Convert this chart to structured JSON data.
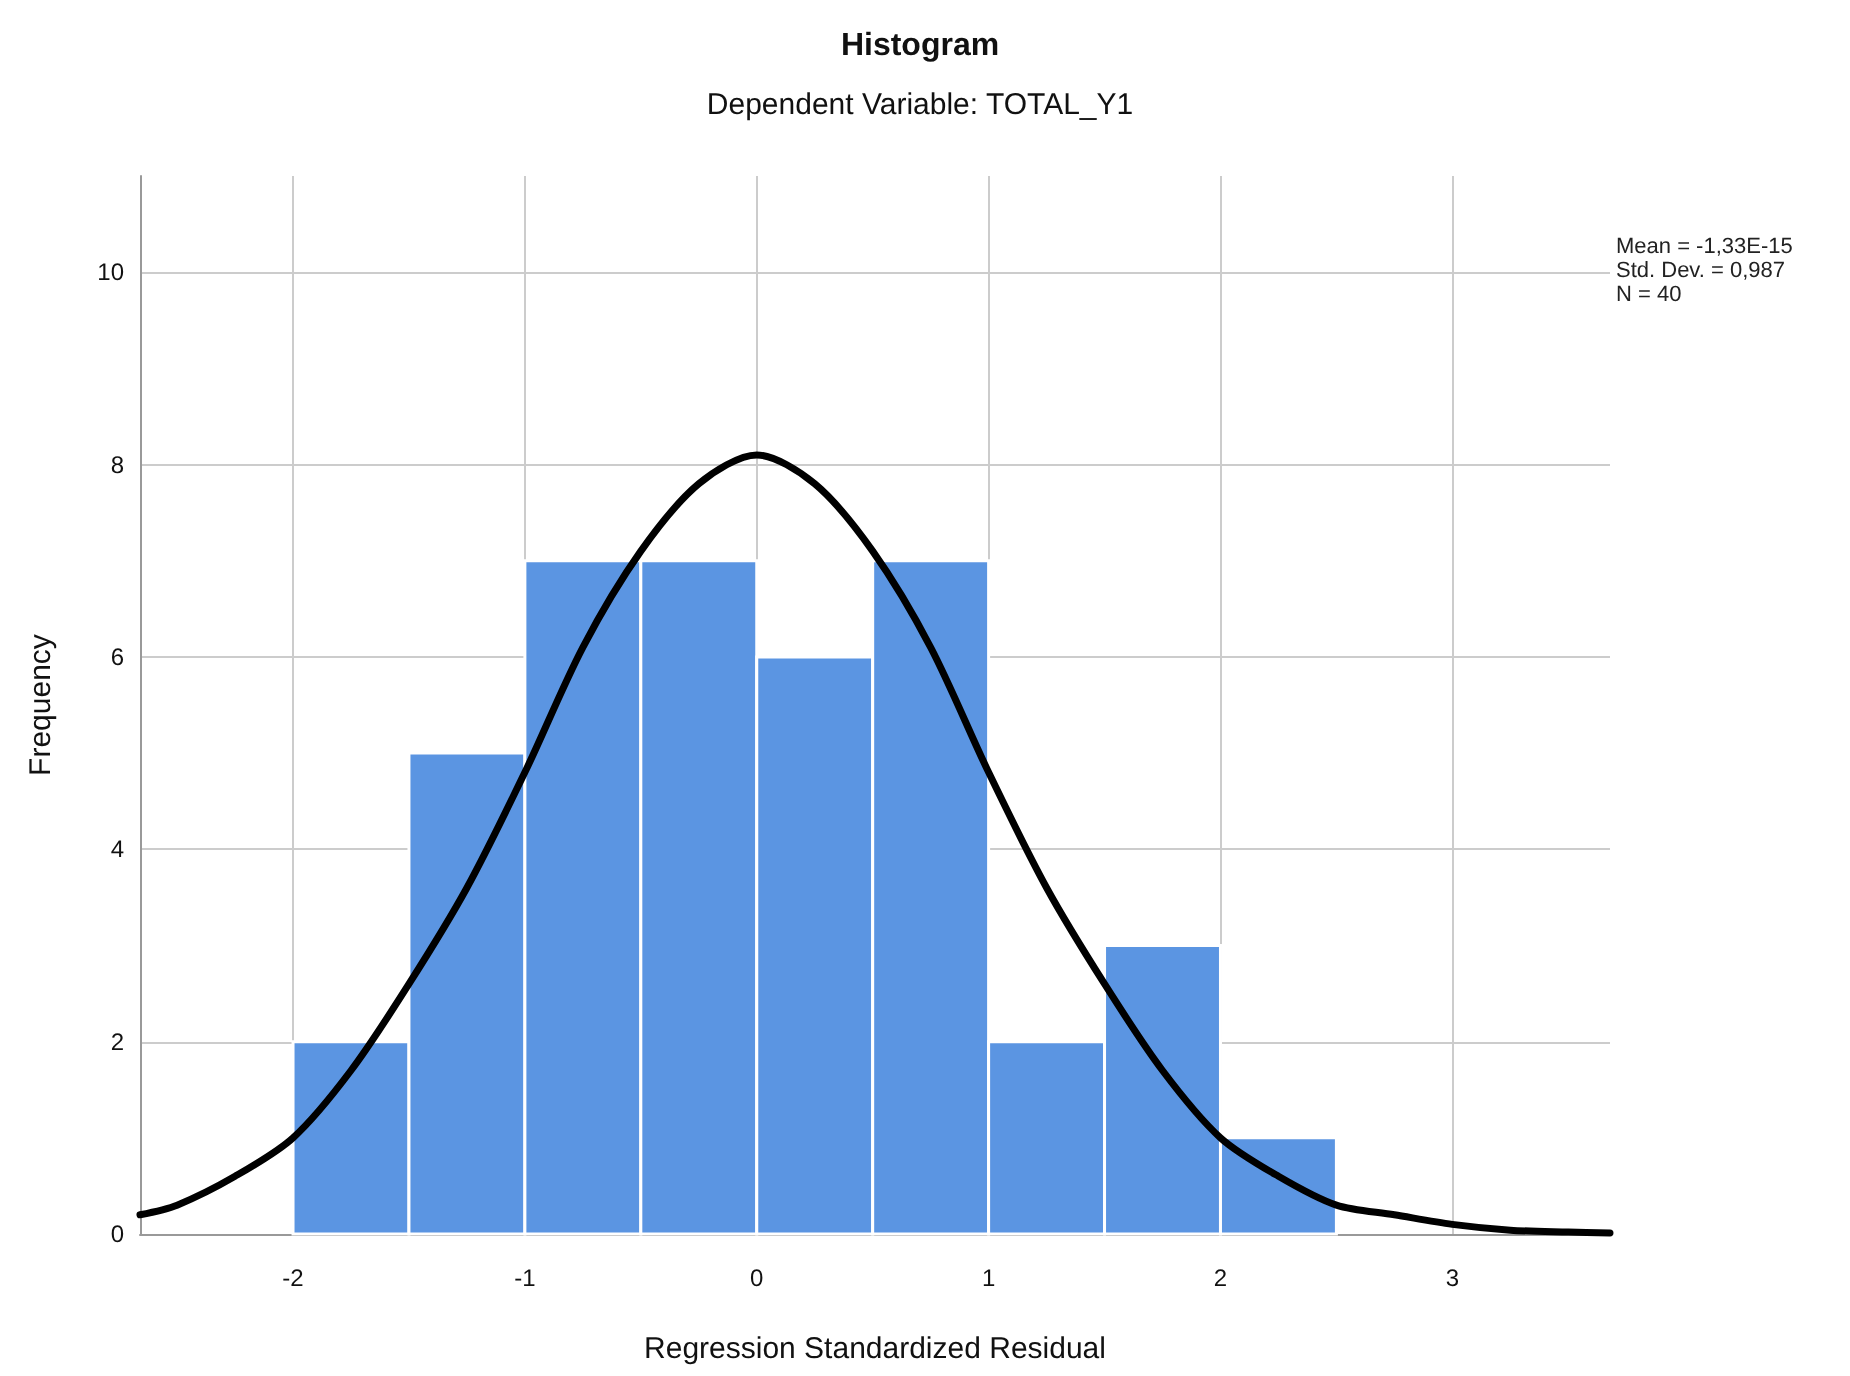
{
  "chart_data": {
    "type": "histogram",
    "title": "Histogram",
    "subtitle": "Dependent Variable: TOTAL_Y1",
    "xlabel": "Regression Standardized Residual",
    "ylabel": "Frequency",
    "annotations": [
      "Mean = -1,33E-15",
      "Std. Dev. = 0,987",
      "N = 40"
    ],
    "series": [
      {
        "color": "#5b95e2",
        "bins": [
          -2,
          -1.5,
          -1,
          -0.5,
          0,
          0.5,
          1,
          1.5,
          2,
          2.5
        ],
        "values": [
          2,
          5,
          7,
          7,
          6,
          7,
          2,
          3,
          1
        ]
      },
      {
        "type": "line",
        "color": "#000000",
        "x": [
          -2.66,
          -2.5,
          -2.25,
          -2,
          -1.75,
          -1.5,
          -1.25,
          -1,
          -0.75,
          -0.5,
          -0.25,
          0,
          0.25,
          0.5,
          0.75,
          1,
          1.25,
          1.5,
          1.75,
          2,
          2.25,
          2.5,
          2.75,
          3,
          3.25,
          3.5,
          3.68
        ],
        "values": [
          0.2,
          0.3,
          0.6,
          1.0,
          1.7,
          2.6,
          3.6,
          4.8,
          6.1,
          7.1,
          7.8,
          8.1,
          7.8,
          7.1,
          6.1,
          4.8,
          3.6,
          2.6,
          1.7,
          1.0,
          0.6,
          0.3,
          0.2,
          0.1,
          0.04,
          0.02,
          0.01
        ]
      }
    ],
    "xlim": [
      -2.66,
      3.68
    ],
    "xticks": [
      -2,
      -1,
      0,
      1,
      2,
      3
    ],
    "ylim": [
      0,
      11
    ],
    "yticks": [
      0,
      2,
      4,
      6,
      8,
      10
    ],
    "grid": true,
    "line_style": "solid",
    "marker": "none"
  }
}
